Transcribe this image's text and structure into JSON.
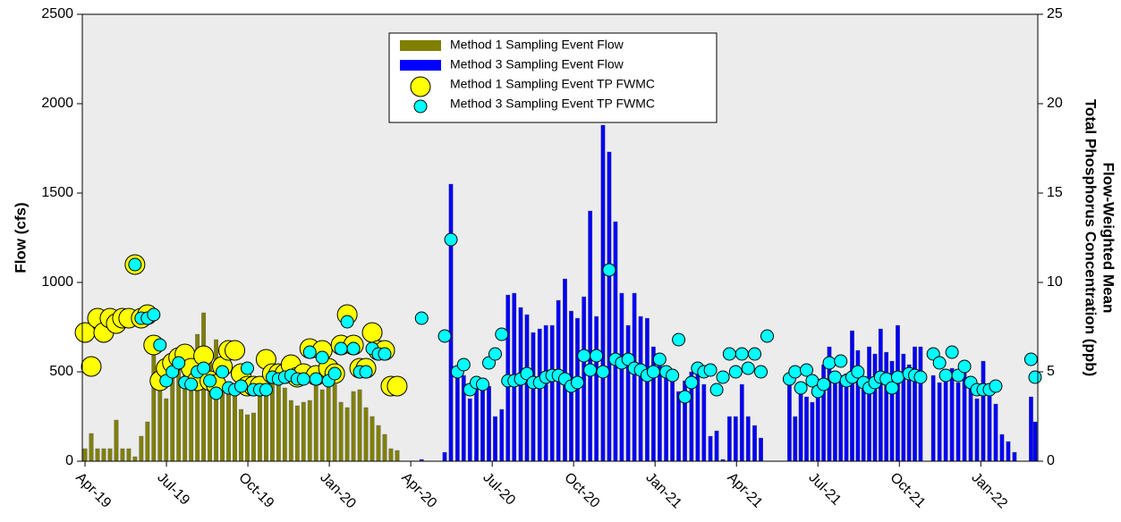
{
  "chart_data": {
    "type": "combo",
    "ylabel": "Flow (cfs)",
    "y2label": [
      "Flow-Weighted Mean",
      "Total Phosphorus Concentration (ppb)"
    ],
    "xlim": [
      -0.1,
      35.1
    ],
    "xticks": [
      {
        "value": 0,
        "label": "Apr-19"
      },
      {
        "value": 3,
        "label": "Jul-19"
      },
      {
        "value": 6,
        "label": "Oct-19"
      },
      {
        "value": 9,
        "label": "Jan-20"
      },
      {
        "value": 12,
        "label": "Apr-20"
      },
      {
        "value": 15,
        "label": "Jul-20"
      },
      {
        "value": 18,
        "label": "Oct-20"
      },
      {
        "value": 21,
        "label": "Jan-21"
      },
      {
        "value": 24,
        "label": "Apr-21"
      },
      {
        "value": 27,
        "label": "Jul-21"
      },
      {
        "value": 30,
        "label": "Oct-21"
      },
      {
        "value": 33,
        "label": "Jan-22"
      }
    ],
    "ylim": [
      0,
      2500
    ],
    "yticks": [
      0,
      500,
      1000,
      1500,
      2000,
      2500
    ],
    "y2lim": [
      0,
      25
    ],
    "y2ticks": [
      0,
      5,
      10,
      15,
      20,
      25
    ],
    "legend": "upper center",
    "series": [
      {
        "name": "Method 1 Sampling Event Flow",
        "type": "bar",
        "color": "#808000",
        "x": [
          0,
          0.23,
          0.46,
          0.69,
          0.92,
          1.15,
          1.38,
          1.61,
          1.84,
          2.07,
          2.3,
          2.53,
          2.76,
          2.99,
          3.22,
          3.45,
          3.68,
          3.91,
          4.14,
          4.37,
          4.6,
          4.83,
          5.06,
          5.29,
          5.52,
          5.75,
          5.98,
          6.21,
          6.44,
          6.67,
          6.9,
          7.13,
          7.36,
          7.59,
          7.82,
          8.05,
          8.28,
          8.51,
          8.74,
          8.97,
          9.2,
          9.43,
          9.66,
          9.89,
          10.12,
          10.35,
          10.58,
          10.81,
          11.04,
          11.27,
          11.5
        ],
        "values": [
          70,
          155,
          70,
          70,
          70,
          230,
          70,
          70,
          25,
          140,
          220,
          630,
          400,
          350,
          560,
          600,
          560,
          560,
          710,
          830,
          620,
          680,
          460,
          380,
          410,
          290,
          260,
          270,
          400,
          460,
          460,
          500,
          410,
          340,
          310,
          330,
          340,
          440,
          400,
          450,
          430,
          330,
          300,
          390,
          400,
          300,
          250,
          200,
          150,
          70,
          60
        ]
      },
      {
        "name": "Method 3 Sampling Event Flow",
        "type": "bar",
        "color": "#0000ff",
        "x": [
          12.4,
          13.25,
          13.48,
          13.72,
          13.95,
          14.18,
          14.42,
          14.65,
          14.88,
          15.11,
          15.35,
          15.58,
          15.81,
          16.05,
          16.28,
          16.51,
          16.75,
          16.98,
          17.21,
          17.44,
          17.68,
          17.91,
          18.14,
          18.38,
          18.61,
          18.84,
          19.08,
          19.31,
          19.54,
          19.77,
          20.01,
          20.24,
          20.47,
          20.71,
          20.94,
          21.17,
          21.41,
          21.64,
          21.87,
          22.1,
          22.34,
          22.57,
          22.8,
          23.04,
          23.27,
          23.5,
          23.74,
          23.97,
          24.2,
          24.43,
          24.67,
          24.9,
          25.95,
          26.16,
          26.37,
          26.58,
          26.79,
          27.0,
          27.21,
          27.42,
          27.63,
          27.84,
          28.05,
          28.26,
          28.47,
          28.68,
          28.89,
          29.1,
          29.31,
          29.52,
          29.73,
          29.94,
          30.15,
          30.36,
          30.57,
          30.78,
          31.25,
          31.48,
          31.71,
          31.94,
          32.17,
          32.4,
          32.63,
          32.86,
          33.09,
          33.32,
          33.55,
          33.78,
          34.01,
          34.24,
          34.85,
          35.0
        ],
        "values": [
          10,
          50,
          1550,
          500,
          480,
          350,
          440,
          420,
          420,
          250,
          290,
          930,
          940,
          860,
          820,
          720,
          740,
          760,
          760,
          900,
          1020,
          840,
          800,
          920,
          1400,
          810,
          1880,
          1730,
          1340,
          940,
          760,
          940,
          810,
          800,
          640,
          560,
          480,
          460,
          390,
          450,
          500,
          520,
          430,
          140,
          170,
          10,
          250,
          250,
          430,
          250,
          200,
          130,
          450,
          250,
          400,
          360,
          330,
          460,
          540,
          640,
          440,
          480,
          490,
          730,
          620,
          410,
          640,
          600,
          740,
          610,
          560,
          760,
          600,
          540,
          640,
          640,
          480,
          440,
          450,
          520,
          440,
          500,
          420,
          350,
          560,
          400,
          320,
          150,
          110,
          50,
          360,
          220
        ]
      },
      {
        "name": "Method 1 Sampling Event TP FWMC",
        "type": "scatter",
        "axis": "y2",
        "color": "#ffff00",
        "x": [
          0,
          0.23,
          0.46,
          0.69,
          0.92,
          1.15,
          1.38,
          1.61,
          1.84,
          2.07,
          2.3,
          2.53,
          2.76,
          2.99,
          3.22,
          3.45,
          3.68,
          3.91,
          4.14,
          4.37,
          4.6,
          4.83,
          5.06,
          5.29,
          5.52,
          5.75,
          5.98,
          6.21,
          6.44,
          6.67,
          6.9,
          7.13,
          7.36,
          7.59,
          7.82,
          8.05,
          8.28,
          8.51,
          8.74,
          8.97,
          9.2,
          9.43,
          9.66,
          9.89,
          10.12,
          10.35,
          10.58,
          10.81,
          11.04,
          11.27,
          11.5
        ],
        "values": [
          7.2,
          5.3,
          8.0,
          7.2,
          8.0,
          7.7,
          8.0,
          8.0,
          11.0,
          8.0,
          8.2,
          6.5,
          4.5,
          5.2,
          5.5,
          5.8,
          6.0,
          5.2,
          4.5,
          5.9,
          4.5,
          4.3,
          5.3,
          6.2,
          6.2,
          4.9,
          4.2,
          4.2,
          4.2,
          5.7,
          4.9,
          4.9,
          4.9,
          5.4,
          4.7,
          4.9,
          6.3,
          4.8,
          6.2,
          5.2,
          4.9,
          6.5,
          8.2,
          6.5,
          5.2,
          5.2,
          7.2,
          6.2,
          6.2,
          4.2,
          4.2
        ]
      },
      {
        "name": "Method 3 Sampling Event TP FWMC",
        "type": "scatter",
        "axis": "y2",
        "color": "#00ffff",
        "x": [
          1.84,
          2.07,
          2.3,
          2.53,
          2.76,
          2.99,
          3.22,
          3.45,
          3.68,
          3.91,
          4.14,
          4.37,
          4.6,
          4.83,
          5.06,
          5.29,
          5.52,
          5.75,
          5.98,
          6.21,
          6.44,
          6.67,
          6.9,
          7.13,
          7.36,
          7.59,
          7.82,
          8.05,
          8.28,
          8.51,
          8.74,
          8.97,
          9.2,
          9.43,
          9.66,
          9.89,
          10.12,
          10.35,
          10.58,
          10.81,
          11.04,
          12.4,
          13.25,
          13.48,
          13.72,
          13.95,
          14.18,
          14.42,
          14.65,
          14.88,
          15.11,
          15.35,
          15.58,
          15.81,
          16.05,
          16.28,
          16.51,
          16.75,
          16.98,
          17.21,
          17.44,
          17.68,
          17.91,
          18.14,
          18.38,
          18.61,
          18.84,
          19.08,
          19.31,
          19.54,
          19.77,
          20.01,
          20.24,
          20.47,
          20.71,
          20.94,
          21.17,
          21.41,
          21.64,
          21.87,
          22.1,
          22.34,
          22.57,
          22.8,
          23.04,
          23.27,
          23.5,
          23.74,
          23.97,
          24.2,
          24.43,
          24.67,
          24.9,
          25.13,
          25.95,
          26.16,
          26.37,
          26.58,
          26.79,
          27.0,
          27.21,
          27.42,
          27.63,
          27.84,
          28.05,
          28.26,
          28.47,
          28.68,
          28.89,
          29.1,
          29.31,
          29.52,
          29.73,
          29.94,
          30.36,
          30.57,
          30.78,
          31.25,
          31.48,
          31.71,
          31.94,
          32.17,
          32.4,
          32.63,
          32.86,
          33.09,
          33.32,
          33.55,
          34.85,
          35.0
        ],
        "values": [
          11.0,
          8.0,
          8.0,
          8.2,
          6.5,
          4.5,
          5.0,
          5.5,
          4.4,
          4.3,
          5.0,
          5.2,
          4.5,
          3.8,
          5.0,
          4.1,
          4.0,
          4.2,
          5.2,
          4.0,
          4.0,
          4.0,
          4.7,
          4.6,
          4.7,
          4.8,
          4.6,
          4.6,
          6.1,
          4.6,
          5.8,
          4.5,
          4.9,
          6.3,
          7.8,
          6.3,
          5.0,
          5.0,
          6.3,
          6.0,
          6.0,
          8.0,
          7.0,
          12.4,
          5.0,
          5.4,
          4.0,
          4.4,
          4.3,
          5.5,
          6.0,
          7.1,
          4.5,
          4.5,
          4.6,
          4.9,
          4.4,
          4.4,
          4.7,
          4.8,
          4.8,
          4.6,
          4.2,
          4.4,
          5.9,
          5.1,
          5.9,
          5.0,
          10.7,
          5.7,
          5.5,
          5.7,
          5.2,
          5.1,
          4.8,
          5.0,
          5.7,
          5.0,
          4.8,
          6.8,
          3.6,
          4.4,
          5.2,
          5.0,
          5.1,
          4.0,
          4.7,
          6.0,
          5.0,
          6.0,
          5.2,
          6.0,
          5.0,
          7.0,
          4.6,
          5.0,
          4.1,
          5.1,
          4.5,
          3.9,
          4.3,
          5.5,
          4.7,
          5.6,
          4.5,
          4.7,
          5.0,
          4.4,
          4.1,
          4.4,
          4.7,
          4.6,
          4.1,
          4.7,
          4.9,
          4.8,
          4.7,
          6.0,
          5.5,
          4.8,
          6.1,
          4.8,
          5.3,
          4.4,
          4.0,
          4.0,
          4.0,
          4.2,
          5.7,
          4.7
        ]
      }
    ]
  }
}
